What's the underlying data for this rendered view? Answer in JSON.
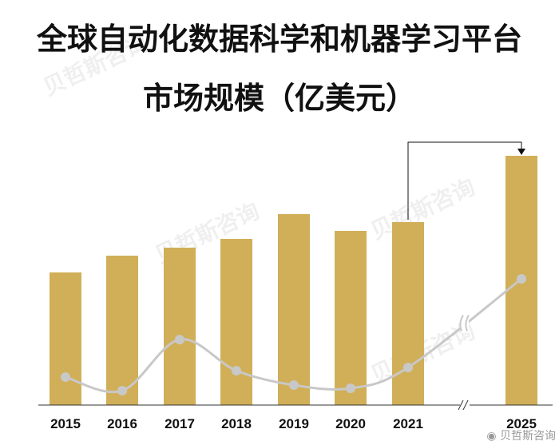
{
  "chart_data": {
    "type": "bar",
    "title": "全球自动化数据科学和机器学习平台",
    "subtitle": "市场规模（亿美元）",
    "categories": [
      "2015",
      "2016",
      "2017",
      "2018",
      "2019",
      "2020",
      "2021",
      "2025"
    ],
    "values": [
      166,
      187,
      197,
      208,
      239,
      218,
      229,
      312
    ],
    "ylim": [
      0,
      320
    ],
    "line": [
      35,
      18,
      82,
      43,
      25,
      21,
      47,
      158
    ],
    "line_ylim": [
      0,
      320
    ],
    "axis_break_after": "2021",
    "grid": false,
    "legend": "none",
    "colors": {
      "bar": "#D1AF58",
      "line": "#C8C8C8",
      "arrow": "#111111"
    }
  },
  "watermark": "贝哲斯咨询",
  "weibo_badge": "贝哲斯咨询"
}
